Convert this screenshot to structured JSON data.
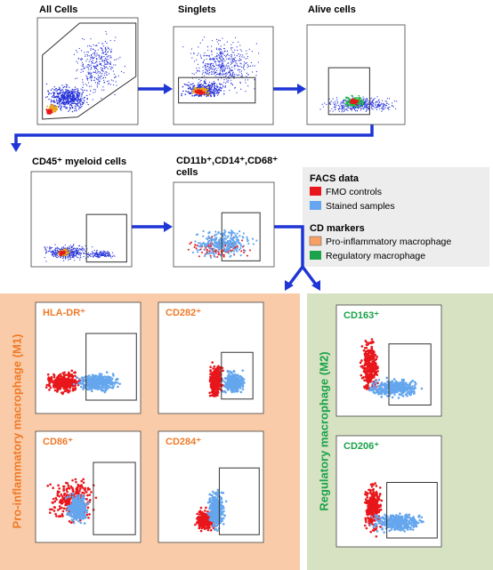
{
  "gating": {
    "panels": [
      {
        "title": "All Cells"
      },
      {
        "title": "Singlets"
      },
      {
        "title": "Alive cells"
      },
      {
        "title": "CD45⁺ myeloid cells"
      },
      {
        "title": "CD11b⁺,CD14⁺,CD68⁺ cells"
      }
    ]
  },
  "legend": {
    "facs_title": "FACS data",
    "facs_items": [
      "FMO controls",
      "Stained samples"
    ],
    "cd_title": "CD markers",
    "cd_items": [
      "Pro-inflammatory macrophage",
      "Regulatory macrophage"
    ]
  },
  "m1": {
    "label": "Pro-inflammatory macrophage (M1)",
    "panels": [
      {
        "title": "HLA-DR⁺"
      },
      {
        "title": "CD282⁺"
      },
      {
        "title": "CD86⁺"
      },
      {
        "title": "CD284⁺"
      }
    ]
  },
  "m2": {
    "label": "Regulatory macrophage (M2)",
    "panels": [
      {
        "title": "CD163⁺"
      },
      {
        "title": "CD206⁺"
      }
    ]
  }
}
